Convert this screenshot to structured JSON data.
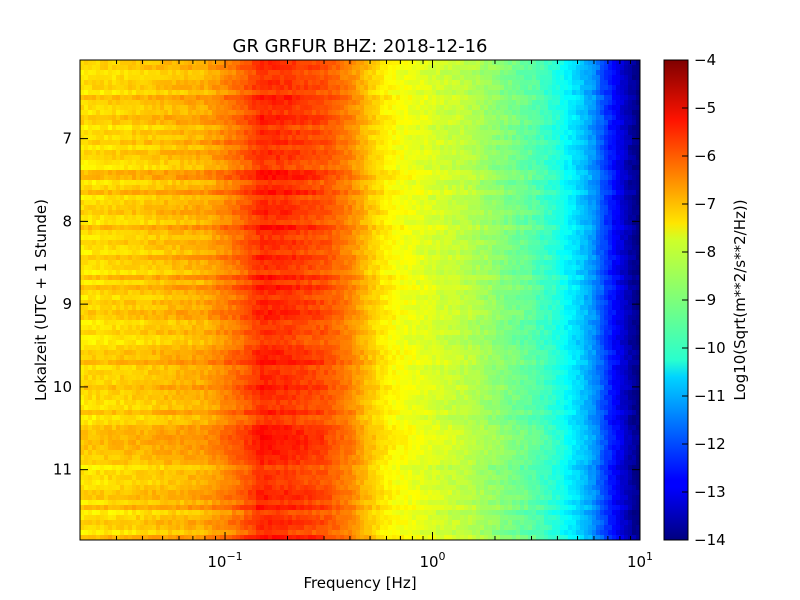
{
  "chart_data": {
    "type": "heatmap",
    "title": "GR GRFUR BHZ: 2018-12-16",
    "xlabel": "Frequency [Hz]",
    "ylabel": "Lokalzeit (UTC + 1 Stunde)",
    "x_scale": "log",
    "xlim": [
      0.02,
      10
    ],
    "ylim": [
      11.85,
      6.05
    ],
    "y_inverted": true,
    "x_ticks": [
      {
        "value": 0.1,
        "base": "10",
        "exp": "−1"
      },
      {
        "value": 1,
        "base": "10",
        "exp": "0"
      },
      {
        "value": 10,
        "base": "10",
        "exp": "1"
      }
    ],
    "y_ticks": [
      {
        "value": 7,
        "label": "7"
      },
      {
        "value": 8,
        "label": "8"
      },
      {
        "value": 9,
        "label": "9"
      },
      {
        "value": 10,
        "label": "10"
      },
      {
        "value": 11,
        "label": "11"
      }
    ],
    "colormap": "jet",
    "colorbar": {
      "label": "Log10(Sqrt(m**2/s**2/Hz))",
      "range": [
        -14,
        -4
      ],
      "ticks": [
        "−4",
        "−5",
        "−6",
        "−7",
        "−8",
        "−9",
        "−10",
        "−11",
        "−12",
        "−13",
        "−14"
      ],
      "tick_values": [
        -4,
        -5,
        -6,
        -7,
        -8,
        -9,
        -10,
        -11,
        -12,
        -13,
        -14
      ]
    },
    "frequency_bins": [
      0.02,
      0.04,
      0.06,
      0.08,
      0.12,
      0.15,
      0.2,
      0.3,
      0.4,
      0.5,
      0.6,
      0.7,
      0.8,
      1.0,
      1.5,
      2.0,
      3.0,
      4.0,
      5.0,
      6.0,
      7.0,
      8.0,
      9.0,
      10.0
    ],
    "frequency_profile_levels": [
      -7.4,
      -7.2,
      -7.0,
      -6.9,
      -6.2,
      -5.6,
      -5.7,
      -6.0,
      -6.5,
      -7.2,
      -7.6,
      -7.8,
      -7.9,
      -8.1,
      -8.4,
      -8.8,
      -9.3,
      -9.9,
      -10.6,
      -11.3,
      -12.3,
      -13.0,
      -13.6,
      -14.0
    ]
  }
}
